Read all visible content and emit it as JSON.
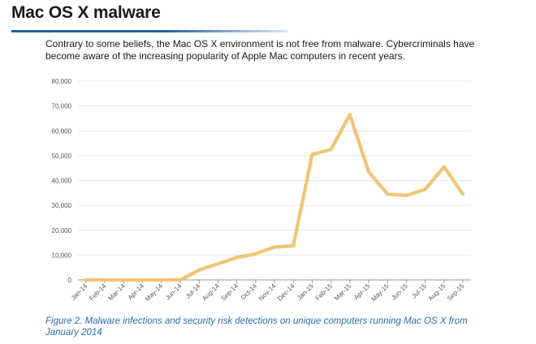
{
  "header": {
    "title": "Mac OS X malware",
    "intro": "Contrary to some beliefs, the Mac OS X environment is not free from malware. Cybercriminals have become aware of the increasing popularity of Apple Mac computers in recent years."
  },
  "caption": "Figure 2. Malware infections and security risk detections on unique computers running Mac OS X from January 2014",
  "chart_data": {
    "type": "line",
    "title": "",
    "xlabel": "",
    "ylabel": "",
    "ylim": [
      0,
      80000
    ],
    "yticks": [
      "0",
      "10,000",
      "20,000",
      "30,000",
      "40,000",
      "50,000",
      "60,000",
      "70,000",
      "80,000"
    ],
    "grid": true,
    "legend": "none",
    "categories": [
      "Jan-14",
      "Feb-14",
      "Mar-14",
      "Apr-14",
      "May-14",
      "Jun-14",
      "Jul-14",
      "Aug-14",
      "Sep-14",
      "Oct-14",
      "Nov-14",
      "Dec-14",
      "Jan-15",
      "Feb-15",
      "Mar-15",
      "Apr-15",
      "May-15",
      "Jun-15",
      "Jul-15",
      "Aug-15",
      "Sep-15"
    ],
    "series": [
      {
        "values": [
          0,
          0,
          0,
          0,
          0,
          0,
          4000,
          6500,
          9000,
          10500,
          13200,
          13800,
          50500,
          52500,
          66500,
          43500,
          34500,
          34000,
          36500,
          45500,
          34500
        ]
      }
    ],
    "colors": {
      "line": "#f2c46d",
      "line_edge": "#d9a94a",
      "grid": "#e6e6e6",
      "axis": "#999999"
    }
  }
}
